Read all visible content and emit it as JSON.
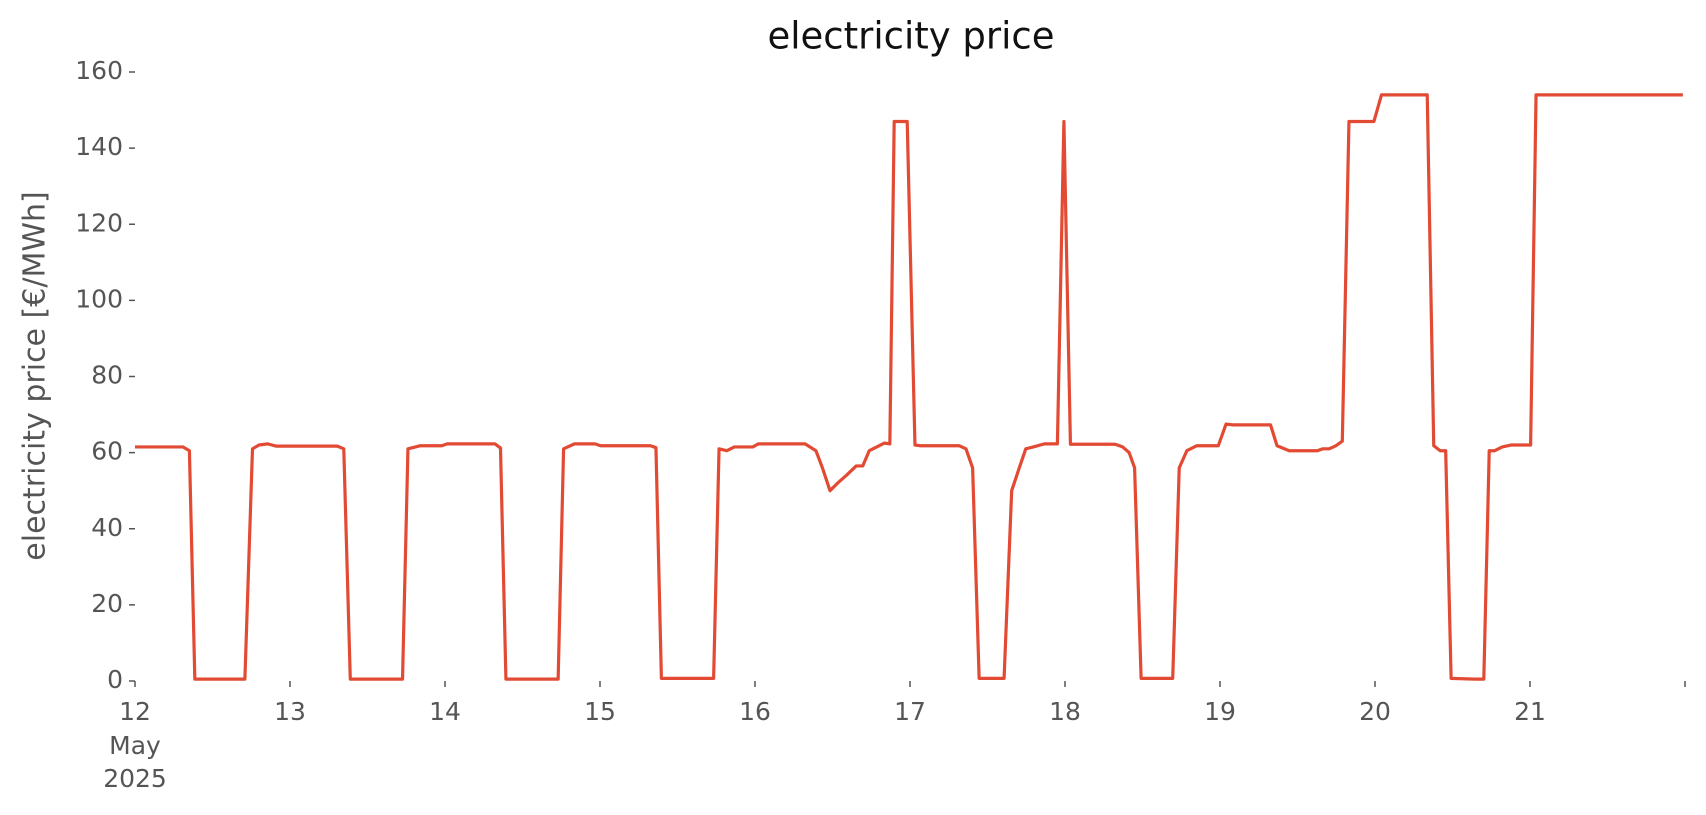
{
  "chart_data": {
    "type": "line",
    "title": "electricity price",
    "ylabel": "electricity price [€/MWh]",
    "color": "#e24a33",
    "x": [
      12.0,
      12.309,
      12.351,
      12.386,
      12.709,
      12.758,
      12.8,
      12.856,
      12.912,
      13.305,
      13.347,
      13.389,
      13.726,
      13.761,
      13.839,
      13.979,
      14.014,
      14.323,
      14.358,
      14.393,
      14.73,
      14.765,
      14.835,
      14.968,
      15.004,
      15.326,
      15.361,
      15.396,
      15.733,
      15.768,
      15.818,
      15.867,
      15.986,
      16.021,
      16.323,
      16.393,
      16.435,
      16.484,
      16.533,
      16.589,
      16.653,
      16.695,
      16.737,
      16.8,
      16.835,
      16.87,
      16.898,
      16.982,
      17.032,
      17.067,
      17.319,
      17.361,
      17.404,
      17.446,
      17.607,
      17.656,
      17.705,
      17.747,
      17.796,
      17.867,
      17.951,
      17.993,
      18.035,
      18.323,
      18.372,
      18.414,
      18.449,
      18.491,
      18.695,
      18.737,
      18.786,
      18.849,
      18.989,
      19.039,
      19.081,
      19.326,
      19.368,
      19.446,
      19.628,
      19.663,
      19.705,
      19.747,
      19.789,
      19.832,
      19.993,
      20.042,
      20.337,
      20.379,
      20.421,
      20.456,
      20.491,
      20.646,
      20.702,
      20.737,
      20.772,
      20.821,
      20.877,
      21.004,
      21.039,
      21.986
    ],
    "values": [
      61.5,
      61.5,
      60.5,
      0.5,
      0.5,
      61,
      62,
      62.3,
      61.7,
      61.7,
      61,
      0.5,
      0.5,
      61,
      61.8,
      61.8,
      62.3,
      62.3,
      61.2,
      0.5,
      0.5,
      61,
      62.3,
      62.3,
      61.8,
      61.8,
      61.3,
      0.7,
      0.7,
      61,
      60.5,
      61.5,
      61.5,
      62.3,
      62.3,
      60.5,
      56,
      50,
      52,
      54,
      56.5,
      56.5,
      60.5,
      61.8,
      62.5,
      62.3,
      147,
      147,
      62,
      61.8,
      61.8,
      61,
      56,
      0.7,
      0.7,
      50,
      56,
      61,
      61.5,
      62.3,
      62.3,
      147,
      62.2,
      62.2,
      61.5,
      60,
      56,
      0.7,
      0.7,
      56,
      60.5,
      61.8,
      61.8,
      67.5,
      67.3,
      67.3,
      61.8,
      60.5,
      60.5,
      61,
      61,
      61.8,
      63,
      147,
      147,
      154,
      154,
      61.8,
      60.5,
      60.5,
      0.7,
      0.5,
      0.5,
      60.5,
      60.5,
      61.5,
      62,
      62,
      154,
      154
    ],
    "xlim": [
      12,
      22
    ],
    "xticks": [
      12,
      13,
      14,
      15,
      16,
      17,
      18,
      19,
      20,
      21
    ],
    "x_tick_sublabels": [
      "May",
      "2025"
    ],
    "ylim": [
      0,
      160
    ],
    "yticks": [
      0,
      20,
      40,
      60,
      80,
      100,
      120,
      140,
      160
    ],
    "grid": false
  }
}
